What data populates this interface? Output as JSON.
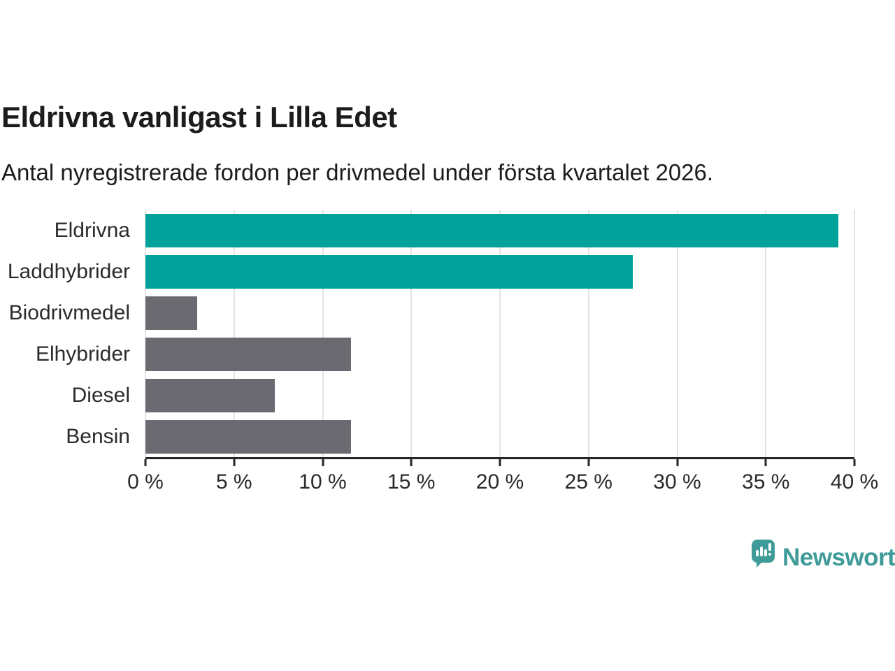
{
  "title": "Eldrivna vanligast i Lilla Edet",
  "subtitle": "Antal nyregistrerade fordon per drivmedel under första kvartalet 2026.",
  "chart_data": {
    "type": "bar",
    "orientation": "horizontal",
    "title": "Eldrivna vanligast i Lilla Edet",
    "subtitle": "Antal nyregistrerade fordon per drivmedel under första kvartalet 2026.",
    "categories": [
      "Eldrivna",
      "Laddhybrider",
      "Biodrivmedel",
      "Elhybrider",
      "Diesel",
      "Bensin"
    ],
    "values": [
      39.1,
      27.5,
      2.9,
      11.6,
      7.3,
      11.6
    ],
    "unit": "%",
    "bar_colors": [
      "#00A29A",
      "#00A29A",
      "#6C6A71",
      "#6C6A71",
      "#6C6A71",
      "#6C6A71"
    ],
    "xlim": [
      0,
      40
    ],
    "x_ticks": [
      "0 %",
      "5 %",
      "10 %",
      "15 %",
      "20 %",
      "25 %",
      "30 %",
      "35 %",
      "40 %"
    ],
    "x_tick_values": [
      0,
      5,
      10,
      15,
      20,
      25,
      30,
      35,
      40
    ],
    "grid": true,
    "legend": false,
    "xlabel": "",
    "ylabel": ""
  },
  "colors": {
    "accent_teal": "#00A29A",
    "bar_gray": "#6C6A71",
    "gridline": "#e3e3e3",
    "axis": "#262626",
    "text_dark": "#1c1c1c",
    "logo_teal": "#3E9B98"
  },
  "footer": {
    "brand": "Newsworthy",
    "logo_icon": "bar-chart-speech-bubble-icon"
  }
}
